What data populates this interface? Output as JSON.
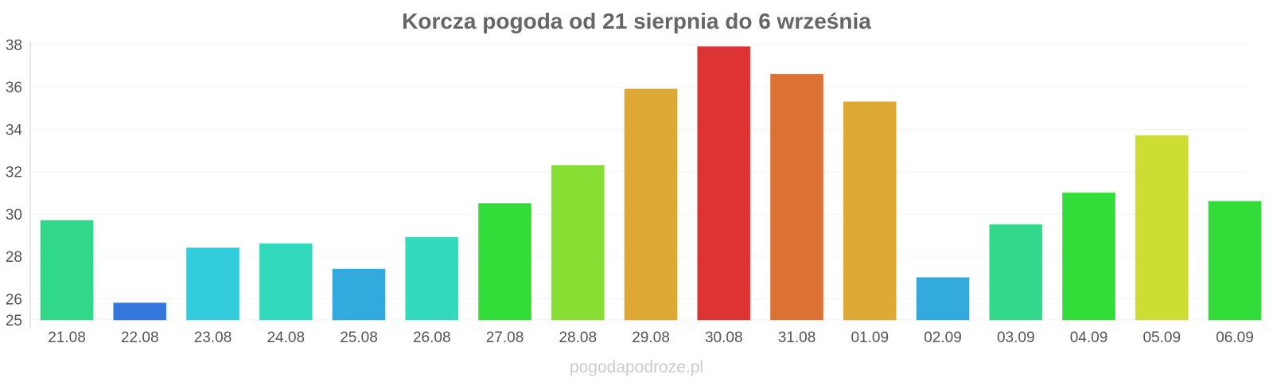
{
  "chart_data": {
    "type": "bar",
    "title": "Korcza pogoda od 21 sierpnia do 6 września",
    "xlabel": "",
    "ylabel": "",
    "ylim": [
      25,
      38
    ],
    "yticks": [
      25,
      26,
      28,
      30,
      32,
      34,
      36,
      38
    ],
    "categories": [
      "21.08",
      "22.08",
      "23.08",
      "24.08",
      "25.08",
      "26.08",
      "27.08",
      "28.08",
      "29.08",
      "30.08",
      "31.08",
      "01.09",
      "02.09",
      "03.09",
      "04.09",
      "05.09",
      "06.09"
    ],
    "values": [
      29.7,
      25.8,
      28.4,
      28.6,
      27.4,
      28.9,
      30.5,
      32.3,
      35.9,
      37.9,
      36.6,
      35.3,
      27.0,
      29.5,
      31.0,
      33.7,
      30.6
    ],
    "colors": [
      "#33d98a",
      "#3377dd",
      "#33ccdd",
      "#33d9bb",
      "#33aadd",
      "#33d9bb",
      "#33dd39",
      "#88dd33",
      "#dda833",
      "#dd3333",
      "#dd7033",
      "#dda833",
      "#33aadd",
      "#33d98a",
      "#33dd39",
      "#ccdd33",
      "#33dd39"
    ],
    "grid": true,
    "legend": "none"
  },
  "credit": "pogodapodroze.pl"
}
